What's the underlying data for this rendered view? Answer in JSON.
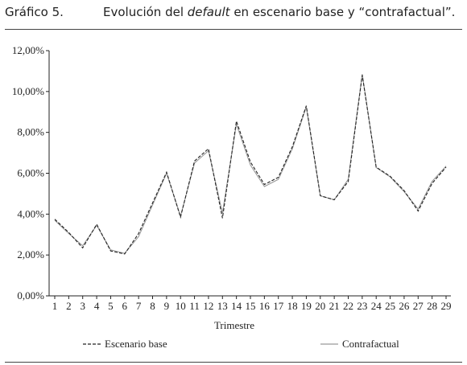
{
  "header": {
    "label": "Gráfico 5.",
    "title_pre": "Evolución del ",
    "title_em": "default",
    "title_post": " en escenario base y “contrafactual”."
  },
  "chart_data": {
    "type": "line",
    "xlabel": "Trimestre",
    "ylabel": "",
    "x": [
      1,
      2,
      3,
      4,
      5,
      6,
      7,
      8,
      9,
      10,
      11,
      12,
      13,
      14,
      15,
      16,
      17,
      18,
      19,
      20,
      21,
      22,
      23,
      24,
      25,
      26,
      27,
      28,
      29
    ],
    "ylim": [
      0,
      12
    ],
    "yticks": [
      0,
      2,
      4,
      6,
      8,
      10,
      12
    ],
    "ytick_labels": [
      "0,00%",
      "2,00%",
      "4,00%",
      "6,00%",
      "8,00%",
      "10,00%",
      "12,00%"
    ],
    "grid": false,
    "legend_position": "bottom",
    "series": [
      {
        "name": "Escenario base",
        "style": "dashed",
        "color": "#222222",
        "values": [
          3.75,
          3.1,
          2.35,
          3.5,
          2.2,
          2.05,
          3.05,
          4.55,
          6.05,
          3.85,
          6.6,
          7.2,
          3.8,
          8.55,
          6.55,
          5.45,
          5.8,
          7.3,
          9.3,
          4.9,
          4.7,
          5.6,
          10.8,
          6.3,
          5.85,
          5.15,
          4.15,
          5.5,
          6.3
        ]
      },
      {
        "name": "Contrafactual",
        "style": "solid",
        "color": "#999999",
        "values": [
          3.7,
          3.05,
          2.45,
          3.45,
          2.25,
          2.08,
          2.9,
          4.45,
          6.0,
          3.9,
          6.5,
          7.1,
          4.05,
          8.4,
          6.4,
          5.35,
          5.7,
          7.2,
          9.25,
          4.9,
          4.7,
          5.7,
          10.85,
          6.28,
          5.82,
          5.1,
          4.25,
          5.6,
          6.35
        ]
      }
    ]
  }
}
